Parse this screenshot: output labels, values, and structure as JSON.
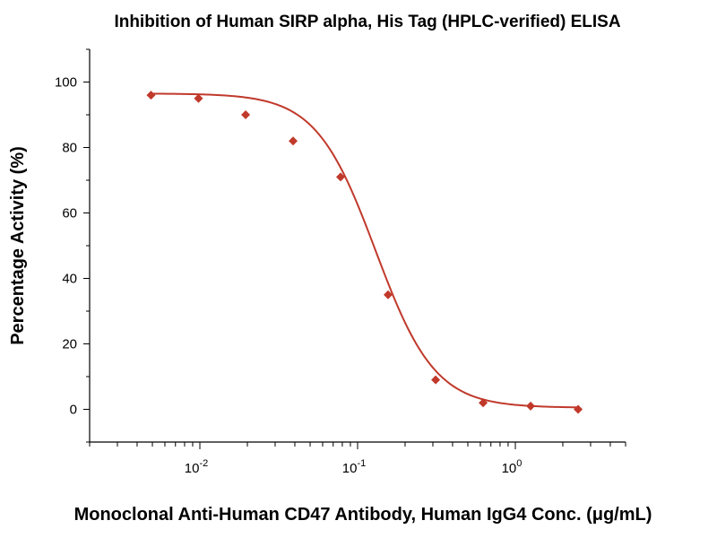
{
  "chart_data": {
    "type": "scatter",
    "title": "Inhibition of Human SIRP alpha, His Tag (HPLC-verified) ELISA",
    "xlabel": "Monoclonal Anti-Human CD47 Antibody, Human IgG4 Conc. (μg/mL)",
    "ylabel": "Percentage Activity (%)",
    "x_scale": "log",
    "xlim": [
      0.002,
      5
    ],
    "ylim": [
      -10,
      110
    ],
    "x_ticks": [
      {
        "value": 0.01,
        "base": "10",
        "exp": "-2"
      },
      {
        "value": 0.1,
        "base": "10",
        "exp": "-1"
      },
      {
        "value": 1,
        "base": "10",
        "exp": "0"
      }
    ],
    "y_ticks": [
      0,
      20,
      40,
      60,
      80,
      100
    ],
    "grid": false,
    "color": "#c0392b",
    "series": [
      {
        "x": [
          0.0049,
          0.0098,
          0.0195,
          0.039,
          0.078,
          0.156,
          0.3125,
          0.625,
          1.25,
          2.5
        ],
        "y": [
          96,
          95,
          90,
          82,
          71,
          35,
          9,
          2,
          1,
          0
        ]
      }
    ],
    "fit": {
      "model": "4PL",
      "top": 96.5,
      "bottom": 0.5,
      "ec50": 0.13,
      "hill": 2.3
    }
  }
}
